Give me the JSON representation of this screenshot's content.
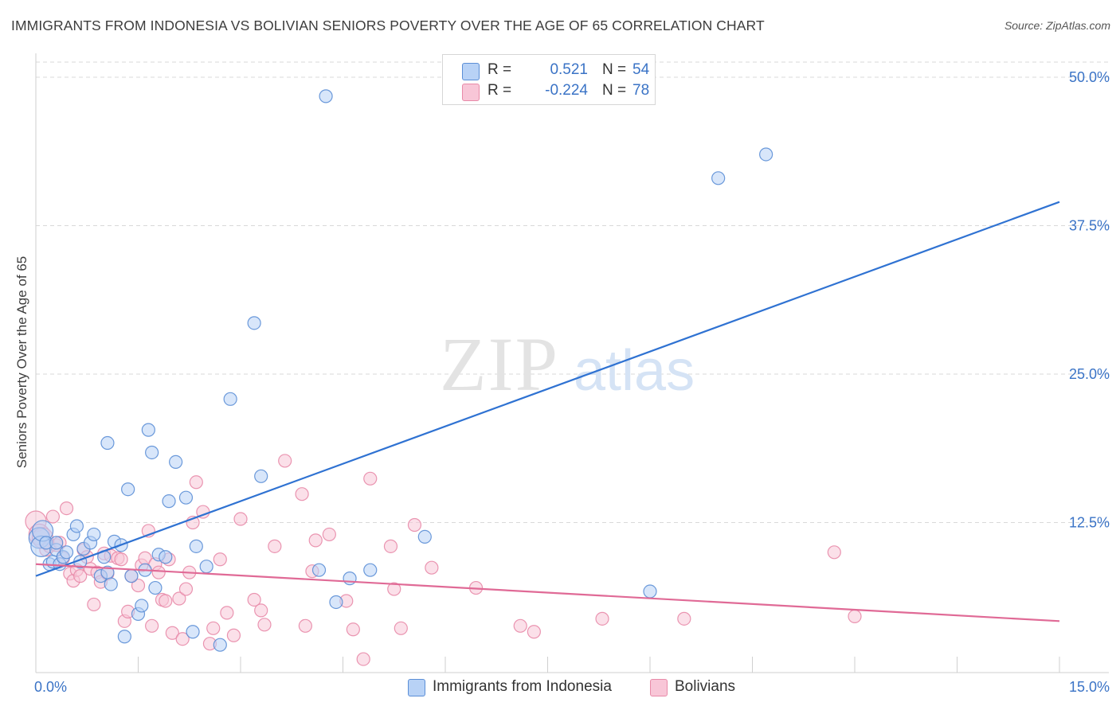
{
  "title": "IMMIGRANTS FROM INDONESIA VS BOLIVIAN SENIORS POVERTY OVER THE AGE OF 65 CORRELATION CHART",
  "source": "Source: ZipAtlas.com",
  "watermark": {
    "zip": "ZIP",
    "atlas": "atlas"
  },
  "legend": {
    "series": [
      {
        "r_label": "R =",
        "r_value": "0.521",
        "n_label": "N =",
        "n_value": "54"
      },
      {
        "r_label": "R =",
        "r_value": "-0.224",
        "n_label": "N =",
        "n_value": "78"
      }
    ]
  },
  "bottom_legend": [
    "Immigrants from Indonesia",
    "Bolivians"
  ],
  "colors": {
    "blue_fill": "#b8d2f6",
    "blue_stroke": "#5b8ed6",
    "blue_line": "#2f72d2",
    "pink_fill": "#f8c6d7",
    "pink_stroke": "#e88aa8",
    "pink_line": "#e06a96",
    "tick_label": "#3a73c6",
    "grid": "#d9d9d9"
  },
  "chart_data": {
    "type": "scatter",
    "title": "IMMIGRANTS FROM INDONESIA VS BOLIVIAN SENIORS POVERTY OVER THE AGE OF 65 CORRELATION CHART",
    "xlabel": "",
    "ylabel": "Seniors Poverty Over the Age of 65",
    "xlim": [
      0,
      15
    ],
    "ylim": [
      0,
      50
    ],
    "x_tick_labels": [
      "0.0%",
      "15.0%"
    ],
    "y_ticks": [
      12.5,
      25.0,
      37.5,
      50.0
    ],
    "y_tick_labels": [
      "12.5%",
      "25.0%",
      "37.5%",
      "50.0%"
    ],
    "grid": true,
    "legend_position": "top-center",
    "series": [
      {
        "name": "Immigrants from Indonesia",
        "r": 0.521,
        "n": 54,
        "trend": [
          [
            0,
            8.0
          ],
          [
            15,
            39.5
          ]
        ],
        "points": [
          [
            0.05,
            11.2
          ],
          [
            0.08,
            10.5
          ],
          [
            0.1,
            11.8
          ],
          [
            0.15,
            10.8
          ],
          [
            0.2,
            9.0
          ],
          [
            0.25,
            9.2
          ],
          [
            0.3,
            10.2
          ],
          [
            0.35,
            9.0
          ],
          [
            0.4,
            9.6
          ],
          [
            0.45,
            10.0
          ],
          [
            0.55,
            11.5
          ],
          [
            0.6,
            12.2
          ],
          [
            0.65,
            9.2
          ],
          [
            0.7,
            10.3
          ],
          [
            0.8,
            10.8
          ],
          [
            0.85,
            11.5
          ],
          [
            0.95,
            8.0
          ],
          [
            1.0,
            9.6
          ],
          [
            1.05,
            8.3
          ],
          [
            1.1,
            7.3
          ],
          [
            1.15,
            10.9
          ],
          [
            1.25,
            10.6
          ],
          [
            1.35,
            15.3
          ],
          [
            1.4,
            8.0
          ],
          [
            1.5,
            4.8
          ],
          [
            1.55,
            5.5
          ],
          [
            1.6,
            8.5
          ],
          [
            1.65,
            20.3
          ],
          [
            1.7,
            18.4
          ],
          [
            1.75,
            7.0
          ],
          [
            1.8,
            9.8
          ],
          [
            1.9,
            9.6
          ],
          [
            1.95,
            14.3
          ],
          [
            2.05,
            17.6
          ],
          [
            2.2,
            14.6
          ],
          [
            2.3,
            3.3
          ],
          [
            2.35,
            10.5
          ],
          [
            2.5,
            8.8
          ],
          [
            2.7,
            2.2
          ],
          [
            2.85,
            22.9
          ],
          [
            3.2,
            29.3
          ],
          [
            3.3,
            16.4
          ],
          [
            4.15,
            8.5
          ],
          [
            4.25,
            48.4
          ],
          [
            4.4,
            5.8
          ],
          [
            4.6,
            7.8
          ],
          [
            4.9,
            8.5
          ],
          [
            5.7,
            11.3
          ],
          [
            9.0,
            6.7
          ],
          [
            10.0,
            41.5
          ],
          [
            10.7,
            43.5
          ],
          [
            0.3,
            10.8
          ],
          [
            1.05,
            19.2
          ],
          [
            1.3,
            2.9
          ]
        ]
      },
      {
        "name": "Bolivians",
        "r": -0.224,
        "n": 78,
        "trend": [
          [
            0,
            9.0
          ],
          [
            15,
            4.2
          ]
        ],
        "points": [
          [
            0.0,
            12.6
          ],
          [
            0.05,
            11.5
          ],
          [
            0.1,
            11.2
          ],
          [
            0.15,
            10.2
          ],
          [
            0.2,
            10.5
          ],
          [
            0.25,
            13.0
          ],
          [
            0.3,
            10.6
          ],
          [
            0.35,
            10.8
          ],
          [
            0.4,
            9.5
          ],
          [
            0.45,
            13.7
          ],
          [
            0.5,
            8.2
          ],
          [
            0.55,
            7.6
          ],
          [
            0.6,
            8.5
          ],
          [
            0.65,
            8.0
          ],
          [
            0.7,
            10.2
          ],
          [
            0.75,
            9.6
          ],
          [
            0.8,
            8.6
          ],
          [
            0.85,
            5.6
          ],
          [
            0.9,
            8.3
          ],
          [
            0.95,
            7.5
          ],
          [
            1.0,
            9.9
          ],
          [
            1.05,
            8.2
          ],
          [
            1.1,
            9.7
          ],
          [
            1.2,
            9.5
          ],
          [
            1.25,
            9.4
          ],
          [
            1.3,
            4.2
          ],
          [
            1.35,
            5.0
          ],
          [
            1.4,
            8.0
          ],
          [
            1.5,
            7.2
          ],
          [
            1.55,
            8.9
          ],
          [
            1.6,
            9.5
          ],
          [
            1.65,
            11.8
          ],
          [
            1.7,
            3.8
          ],
          [
            1.75,
            9.0
          ],
          [
            1.8,
            8.3
          ],
          [
            1.85,
            6.0
          ],
          [
            1.9,
            5.9
          ],
          [
            1.95,
            9.4
          ],
          [
            2.0,
            3.2
          ],
          [
            2.1,
            6.1
          ],
          [
            2.15,
            2.7
          ],
          [
            2.2,
            6.9
          ],
          [
            2.25,
            8.3
          ],
          [
            2.3,
            12.5
          ],
          [
            2.35,
            15.9
          ],
          [
            2.45,
            13.4
          ],
          [
            2.55,
            2.3
          ],
          [
            2.6,
            3.6
          ],
          [
            2.7,
            9.4
          ],
          [
            2.8,
            4.9
          ],
          [
            2.9,
            3.0
          ],
          [
            3.0,
            12.8
          ],
          [
            3.2,
            6.0
          ],
          [
            3.3,
            5.1
          ],
          [
            3.35,
            3.9
          ],
          [
            3.5,
            10.5
          ],
          [
            3.65,
            17.7
          ],
          [
            3.9,
            14.9
          ],
          [
            3.95,
            3.8
          ],
          [
            4.05,
            8.4
          ],
          [
            4.1,
            11.0
          ],
          [
            4.3,
            11.5
          ],
          [
            4.55,
            5.9
          ],
          [
            4.65,
            3.5
          ],
          [
            4.8,
            1.0
          ],
          [
            4.9,
            16.2
          ],
          [
            5.2,
            10.5
          ],
          [
            5.25,
            6.9
          ],
          [
            5.35,
            3.6
          ],
          [
            5.55,
            12.3
          ],
          [
            5.8,
            8.7
          ],
          [
            6.45,
            7.0
          ],
          [
            7.1,
            3.8
          ],
          [
            7.3,
            3.3
          ],
          [
            8.3,
            4.4
          ],
          [
            9.5,
            4.4
          ],
          [
            11.7,
            10.0
          ],
          [
            12.0,
            4.6
          ]
        ]
      }
    ]
  }
}
